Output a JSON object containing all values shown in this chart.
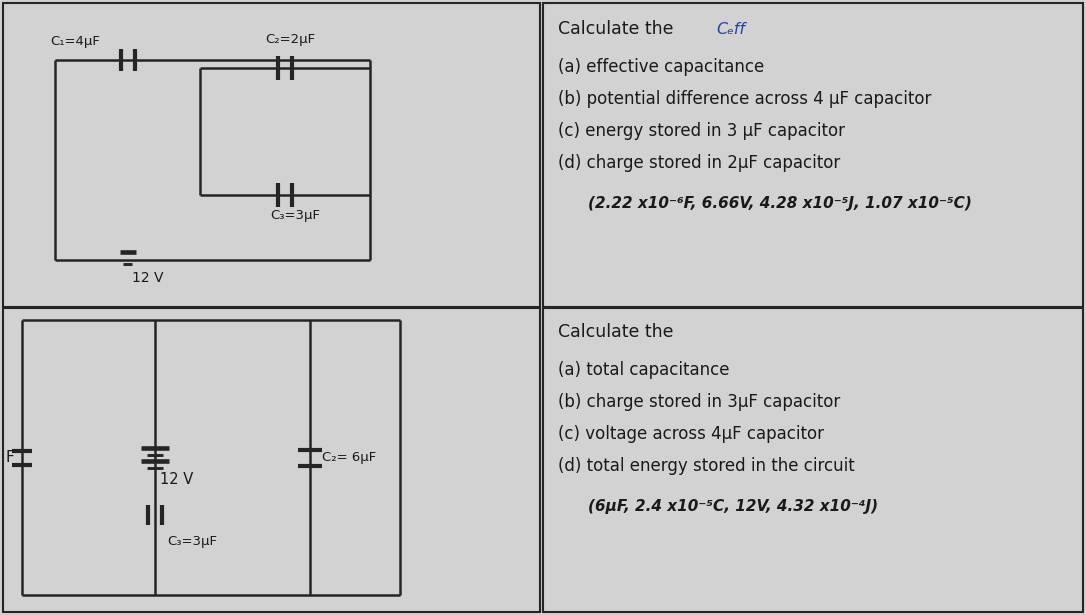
{
  "bg_color": "#d2d2d2",
  "line_color": "#252525",
  "text_color": "#1a1a1a",
  "blue_color": "#2244aa",
  "lw": 1.8,
  "panel1": {
    "C1_label": "C₁=4μF",
    "C2_label": "C₂=2μF",
    "C3_label": "C₃=3μF",
    "V_label": "12 V",
    "text_title": "Calculate the",
    "text_title_blue": "Cₑff",
    "text_lines": [
      "(a) effective capacitance",
      "(b) potential difference across 4 μF capacitor",
      "(c) energy stored in 3 μF capacitor",
      "(d) charge stored in 2μF capacitor"
    ],
    "answer": "(2.22 x10⁻⁶F, 6.66V, 4.28 x10⁻⁵J, 1.07 x10⁻⁵C)"
  },
  "panel2": {
    "C1_label": "F",
    "C2_label": "C₂= 6μF",
    "C3_label": "C₃=3μF",
    "V_label": "12 V",
    "text_title": "Calculate the",
    "text_lines": [
      "(a) total capacitance",
      "(b) charge stored in 3μF capacitor",
      "(c) voltage across 4μF capacitor",
      "(d) total energy stored in the circuit"
    ],
    "answer": "(6μF, 2.4 x10⁻⁵C, 12V, 4.32 x10⁻⁴J)"
  }
}
